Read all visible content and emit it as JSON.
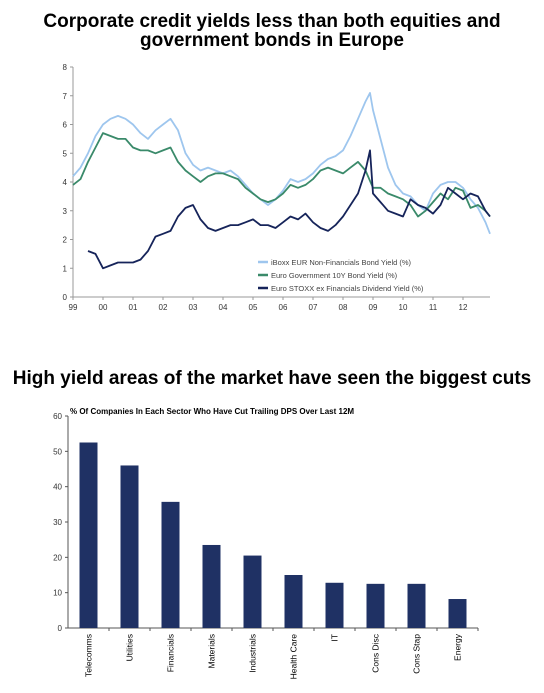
{
  "chart_data": [
    {
      "type": "line",
      "title": "Corporate credit yields less than both equities and government bonds in Europe",
      "ylim": [
        0,
        8
      ],
      "yticks": [
        "0",
        "1",
        "2",
        "3",
        "4",
        "5",
        "6",
        "7",
        "8"
      ],
      "xticks": [
        "99",
        "00",
        "01",
        "02",
        "03",
        "04",
        "05",
        "06",
        "07",
        "08",
        "09",
        "10",
        "11",
        "12"
      ],
      "xlim": [
        1999.0,
        2012.9
      ],
      "legend_position": "bottom-right",
      "grid": false,
      "series": [
        {
          "name": "iBoxx EUR Non-Financials Bond Yield (%)",
          "color": "#9ec6ee",
          "x": [
            1999.0,
            1999.25,
            1999.5,
            1999.75,
            2000.0,
            2000.25,
            2000.5,
            2000.75,
            2001.0,
            2001.25,
            2001.5,
            2001.75,
            2002.0,
            2002.25,
            2002.5,
            2002.75,
            2003.0,
            2003.25,
            2003.5,
            2003.75,
            2004.0,
            2004.25,
            2004.5,
            2004.75,
            2005.0,
            2005.25,
            2005.5,
            2005.75,
            2006.0,
            2006.25,
            2006.5,
            2006.75,
            2007.0,
            2007.25,
            2007.5,
            2007.75,
            2008.0,
            2008.25,
            2008.5,
            2008.75,
            2008.9,
            2009.0,
            2009.25,
            2009.5,
            2009.75,
            2010.0,
            2010.25,
            2010.5,
            2010.75,
            2011.0,
            2011.25,
            2011.5,
            2011.75,
            2012.0,
            2012.25,
            2012.5,
            2012.75,
            2012.9
          ],
          "values": [
            4.2,
            4.5,
            5.0,
            5.6,
            6.0,
            6.2,
            6.3,
            6.2,
            6.0,
            5.7,
            5.5,
            5.8,
            6.0,
            6.2,
            5.8,
            5.0,
            4.6,
            4.4,
            4.5,
            4.4,
            4.3,
            4.4,
            4.2,
            3.9,
            3.6,
            3.4,
            3.2,
            3.4,
            3.7,
            4.1,
            4.0,
            4.1,
            4.3,
            4.6,
            4.8,
            4.9,
            5.1,
            5.6,
            6.2,
            6.8,
            7.1,
            6.5,
            5.5,
            4.5,
            3.9,
            3.6,
            3.5,
            3.2,
            3.0,
            3.6,
            3.9,
            4.0,
            4.0,
            3.8,
            3.4,
            3.1,
            2.6,
            2.2
          ]
        },
        {
          "name": "Euro Government 10Y Bond Yield (%)",
          "color": "#3a8a6a",
          "x": [
            1999.0,
            1999.25,
            1999.5,
            1999.75,
            2000.0,
            2000.25,
            2000.5,
            2000.75,
            2001.0,
            2001.25,
            2001.5,
            2001.75,
            2002.0,
            2002.25,
            2002.5,
            2002.75,
            2003.0,
            2003.25,
            2003.5,
            2003.75,
            2004.0,
            2004.25,
            2004.5,
            2004.75,
            2005.0,
            2005.25,
            2005.5,
            2005.75,
            2006.0,
            2006.25,
            2006.5,
            2006.75,
            2007.0,
            2007.25,
            2007.5,
            2007.75,
            2008.0,
            2008.25,
            2008.5,
            2008.75,
            2009.0,
            2009.25,
            2009.5,
            2009.75,
            2010.0,
            2010.25,
            2010.5,
            2010.75,
            2011.0,
            2011.25,
            2011.5,
            2011.75,
            2012.0,
            2012.25,
            2012.5,
            2012.75,
            2012.9
          ],
          "values": [
            3.9,
            4.1,
            4.7,
            5.2,
            5.7,
            5.6,
            5.5,
            5.5,
            5.2,
            5.1,
            5.1,
            5.0,
            5.1,
            5.2,
            4.7,
            4.4,
            4.2,
            4.0,
            4.2,
            4.3,
            4.3,
            4.2,
            4.1,
            3.8,
            3.6,
            3.4,
            3.3,
            3.4,
            3.6,
            3.9,
            3.8,
            3.9,
            4.1,
            4.4,
            4.5,
            4.4,
            4.3,
            4.5,
            4.7,
            4.4,
            3.8,
            3.8,
            3.6,
            3.5,
            3.4,
            3.2,
            2.8,
            3.0,
            3.3,
            3.6,
            3.4,
            3.8,
            3.7,
            3.1,
            3.2,
            3.0,
            2.8
          ]
        },
        {
          "name": "Euro STOXX ex Financials Dividend Yield (%)",
          "color": "#16245a",
          "x": [
            1999.5,
            1999.75,
            2000.0,
            2000.25,
            2000.5,
            2000.75,
            2001.0,
            2001.25,
            2001.5,
            2001.75,
            2002.0,
            2002.25,
            2002.5,
            2002.75,
            2003.0,
            2003.25,
            2003.5,
            2003.75,
            2004.0,
            2004.25,
            2004.5,
            2004.75,
            2005.0,
            2005.25,
            2005.5,
            2005.75,
            2006.0,
            2006.25,
            2006.5,
            2006.75,
            2007.0,
            2007.25,
            2007.5,
            2007.75,
            2008.0,
            2008.25,
            2008.5,
            2008.75,
            2008.9,
            2009.0,
            2009.25,
            2009.5,
            2009.75,
            2010.0,
            2010.25,
            2010.5,
            2010.75,
            2011.0,
            2011.25,
            2011.5,
            2011.75,
            2012.0,
            2012.25,
            2012.5,
            2012.75,
            2012.9
          ],
          "values": [
            1.6,
            1.5,
            1.0,
            1.1,
            1.2,
            1.2,
            1.2,
            1.3,
            1.6,
            2.1,
            2.2,
            2.3,
            2.8,
            3.1,
            3.2,
            2.7,
            2.4,
            2.3,
            2.4,
            2.5,
            2.5,
            2.6,
            2.7,
            2.5,
            2.5,
            2.4,
            2.6,
            2.8,
            2.7,
            2.9,
            2.6,
            2.4,
            2.3,
            2.5,
            2.8,
            3.2,
            3.6,
            4.4,
            5.1,
            3.6,
            3.3,
            3.0,
            2.9,
            2.8,
            3.4,
            3.2,
            3.1,
            2.9,
            3.2,
            3.8,
            3.6,
            3.4,
            3.6,
            3.5,
            3.0,
            2.8
          ]
        }
      ]
    },
    {
      "type": "bar",
      "title": "High yield areas of the market have seen the biggest cuts",
      "subtitle": "% Of Companies In Each Sector Who Have Cut Trailing DPS Over Last 12M",
      "ylim": [
        0,
        60
      ],
      "yticks": [
        "0",
        "10",
        "20",
        "30",
        "40",
        "50",
        "60"
      ],
      "bar_color": "#1f3164",
      "grid": false,
      "categories": [
        "Telecomms",
        "Utilities",
        "Financials",
        "Materials",
        "Industrials",
        "Health Care",
        "IT",
        "Cons Disc",
        "Cons Stap",
        "Energy"
      ],
      "values": [
        52.5,
        46,
        35.7,
        23.5,
        20.5,
        15,
        12.8,
        12.5,
        12.5,
        8.2
      ]
    }
  ]
}
